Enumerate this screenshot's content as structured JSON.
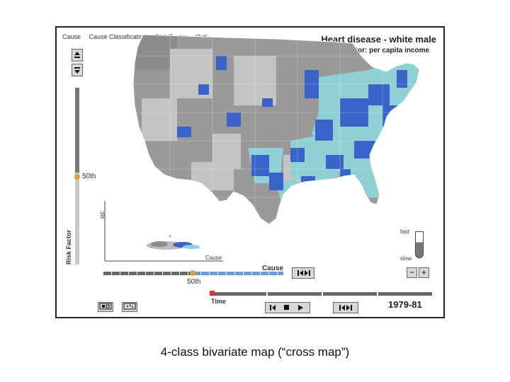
{
  "menu": {
    "items": [
      "Cause",
      "Cause Classification",
      "Risk Factor",
      "Quit"
    ]
  },
  "header": {
    "title": "Heart disease - white male",
    "subtitle": "Risk factor: per capita income"
  },
  "risk_slider": {
    "label": "Risk Factor",
    "value_label": "50th"
  },
  "scatter": {
    "y_axis_label": "RF",
    "x_axis_label": "Cause"
  },
  "cause_slider": {
    "label": "Cause",
    "value_label": "50th"
  },
  "animation_speed": {
    "fast_label": "fast",
    "slow_label": "slow",
    "minus_label": "−",
    "plus_label": "+"
  },
  "time": {
    "label": "Time",
    "period": "1979-81"
  },
  "caption": "4-class bivariate map (“cross map”)",
  "colors": {
    "high_high": "#3a63c9",
    "low_rf_high_cause": "#8fd0d4",
    "high_rf_low_cause": "#8c8c8c",
    "low_low": "#bdbdbd",
    "accent_thumb": "#e89a3c",
    "time_thumb": "#dd3333"
  },
  "icons": {
    "scroll_up": "up-down-arrow-icon",
    "scroll_down": "down-arrow-icon",
    "media_step_back": "step-back-icon",
    "media_play": "play-icon",
    "media_stop": "stop-icon"
  }
}
